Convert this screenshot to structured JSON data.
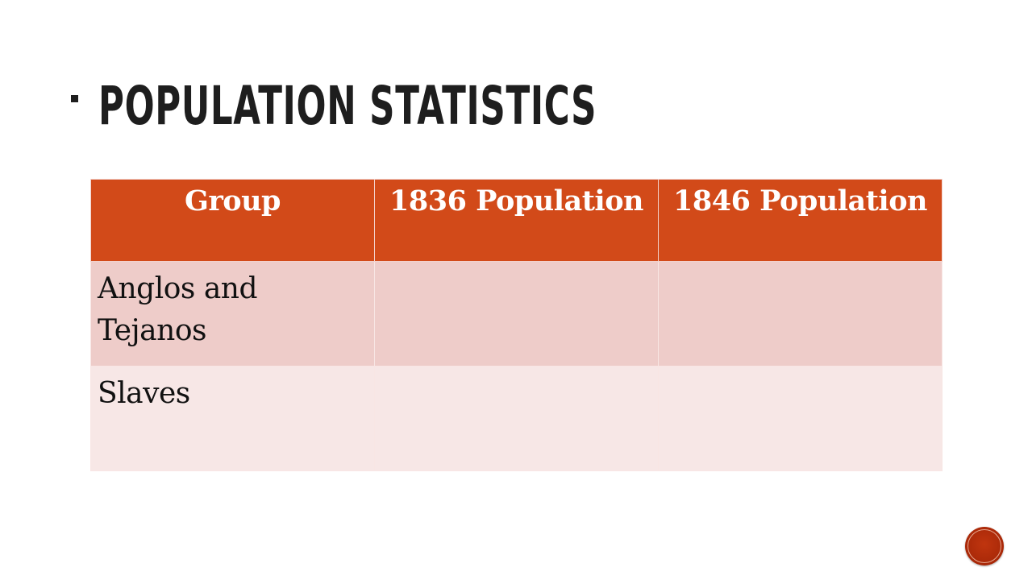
{
  "slide": {
    "title": "POPULATION STATISTICS"
  },
  "table": {
    "headers": [
      "Group",
      "1836 Population",
      "1846 Population"
    ],
    "rows": [
      [
        "Anglos and Tejanos",
        "",
        ""
      ],
      [
        "Slaves",
        "",
        ""
      ]
    ]
  },
  "colors": {
    "header_bg": "#d24a19",
    "row_odd_bg": "#eeccc9",
    "row_even_bg": "#f7e7e6",
    "accent": "#b02d0b"
  },
  "icons": {
    "nav_button": "circle-nav-icon"
  }
}
